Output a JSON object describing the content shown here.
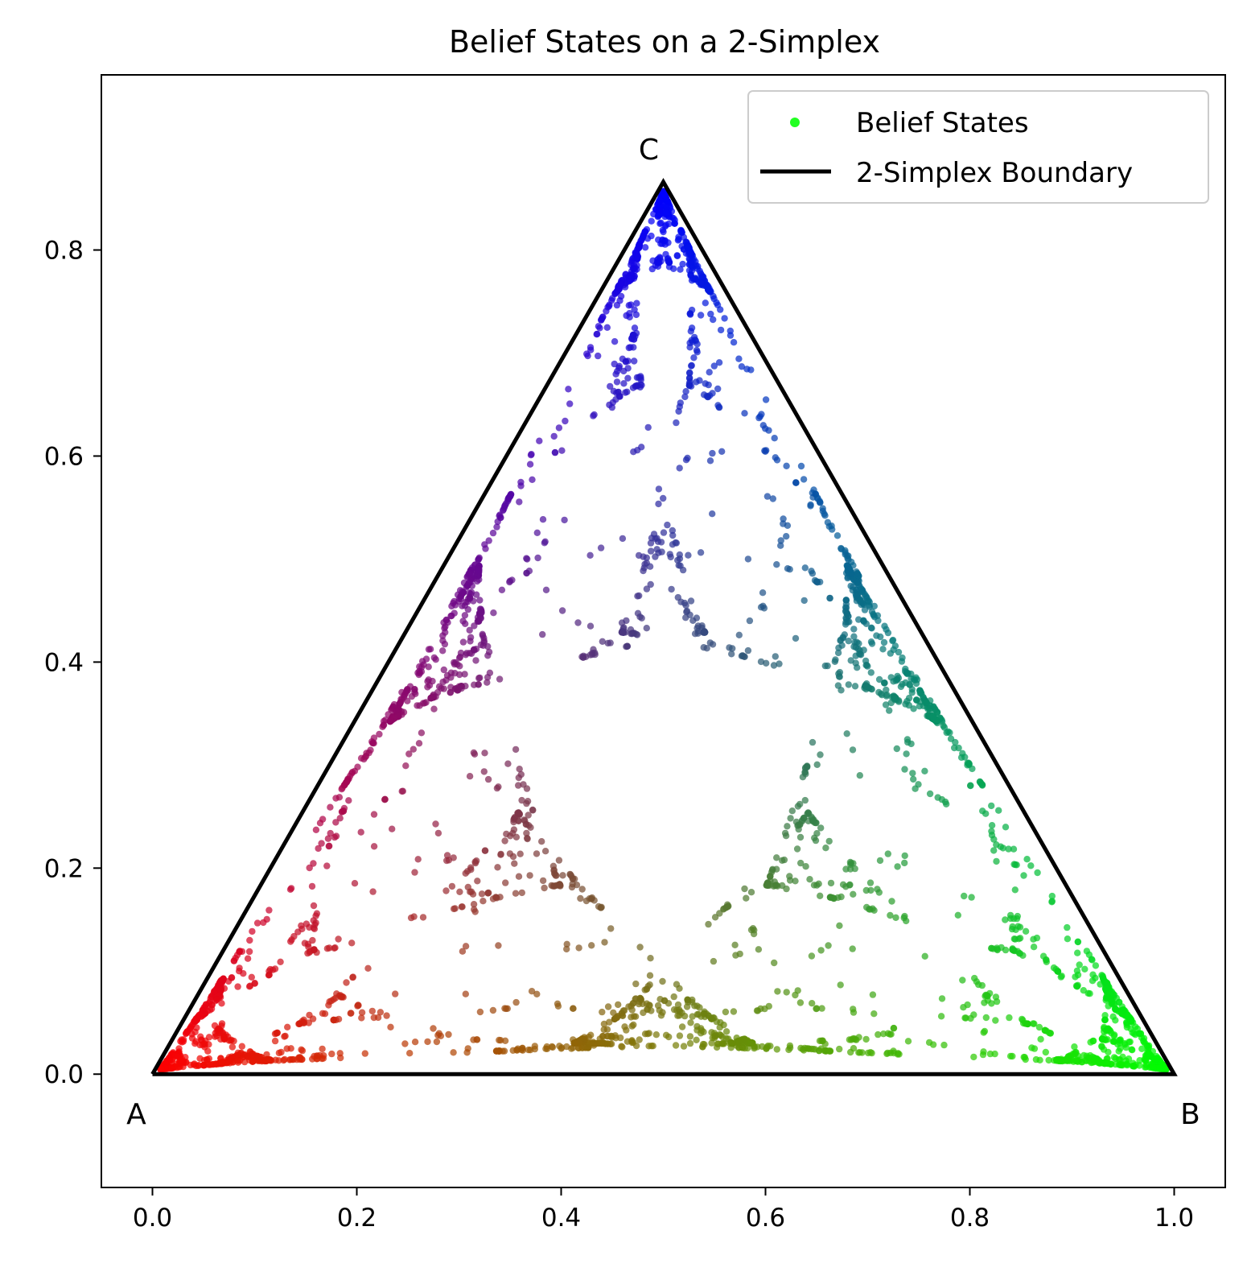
{
  "chart_data": {
    "type": "scatter",
    "title": "Belief States on a 2-Simplex",
    "xlabel": "",
    "ylabel": "",
    "xlim": [
      -0.05,
      1.05
    ],
    "ylim": [
      -0.11,
      0.97
    ],
    "x_ticks": [
      0.0,
      0.2,
      0.4,
      0.6,
      0.8,
      1.0
    ],
    "x_tick_labels": [
      "0.0",
      "0.2",
      "0.4",
      "0.6",
      "0.8",
      "1.0"
    ],
    "y_ticks": [
      0.0,
      0.2,
      0.4,
      0.6,
      0.8
    ],
    "y_tick_labels": [
      "0.0",
      "0.2",
      "0.4",
      "0.6",
      "0.8"
    ],
    "grid": false,
    "legend_position": "top-right",
    "legend": [
      {
        "label": "Belief States",
        "marker": "dot",
        "color": "#00ff00"
      },
      {
        "label": "2-Simplex Boundary",
        "marker": "line",
        "color": "#000000"
      }
    ],
    "vertices": [
      {
        "label": "A",
        "x": 0.0,
        "y": 0.0,
        "color": "#ff0000"
      },
      {
        "label": "B",
        "x": 1.0,
        "y": 0.0,
        "color": "#00ff00"
      },
      {
        "label": "C",
        "x": 0.5,
        "y": 0.866,
        "color": "#0000ff"
      }
    ],
    "series": [
      {
        "name": "Belief States",
        "kind": "scatter",
        "color_mode": "barycentric RGB (A=red, B=green, C=blue)",
        "points_description": "fractal belief-state point cloud of a 3-state process"
      },
      {
        "name": "2-Simplex Boundary",
        "kind": "line",
        "color": "#000000",
        "x": [
          0.0,
          1.0,
          0.5,
          0.0
        ],
        "y": [
          0.0,
          0.0,
          0.866,
          0.0
        ]
      }
    ]
  }
}
